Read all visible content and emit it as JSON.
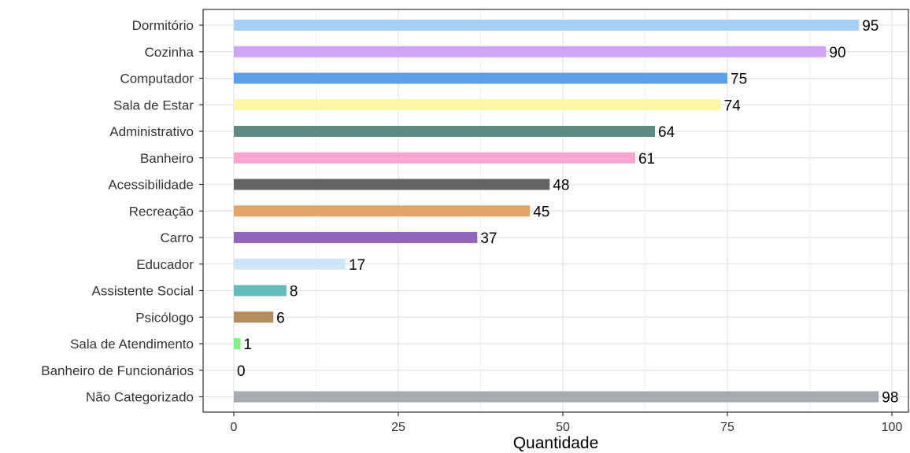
{
  "chart_data": {
    "type": "bar",
    "orientation": "horizontal",
    "categories": [
      "Dormitório",
      "Cozinha",
      "Computador",
      "Sala de Estar",
      "Administrativo",
      "Banheiro",
      "Acessibilidade",
      "Recreação",
      "Carro",
      "Educador",
      "Assistente Social",
      "Psicólogo",
      "Sala de Atendimento",
      "Banheiro de Funcionários",
      "Não Categorizado"
    ],
    "values": [
      95,
      90,
      75,
      74,
      64,
      61,
      48,
      45,
      37,
      17,
      8,
      6,
      1,
      0,
      98
    ],
    "colors": [
      "#a6d1f8",
      "#cfa4f6",
      "#5b9fe8",
      "#fbf7a2",
      "#5f8a84",
      "#f7a6d1",
      "#646464",
      "#e6a464",
      "#9164bf",
      "#cfe5fa",
      "#62bcbc",
      "#b48c5e",
      "#7ff27f",
      "#ffffff",
      "#a6abb1"
    ],
    "title": "",
    "xlabel": "Quantidade",
    "ylabel": "",
    "xlim": [
      0,
      100
    ],
    "xticks": [
      0,
      25,
      50,
      75,
      100
    ],
    "grid": true,
    "legend": "none"
  }
}
